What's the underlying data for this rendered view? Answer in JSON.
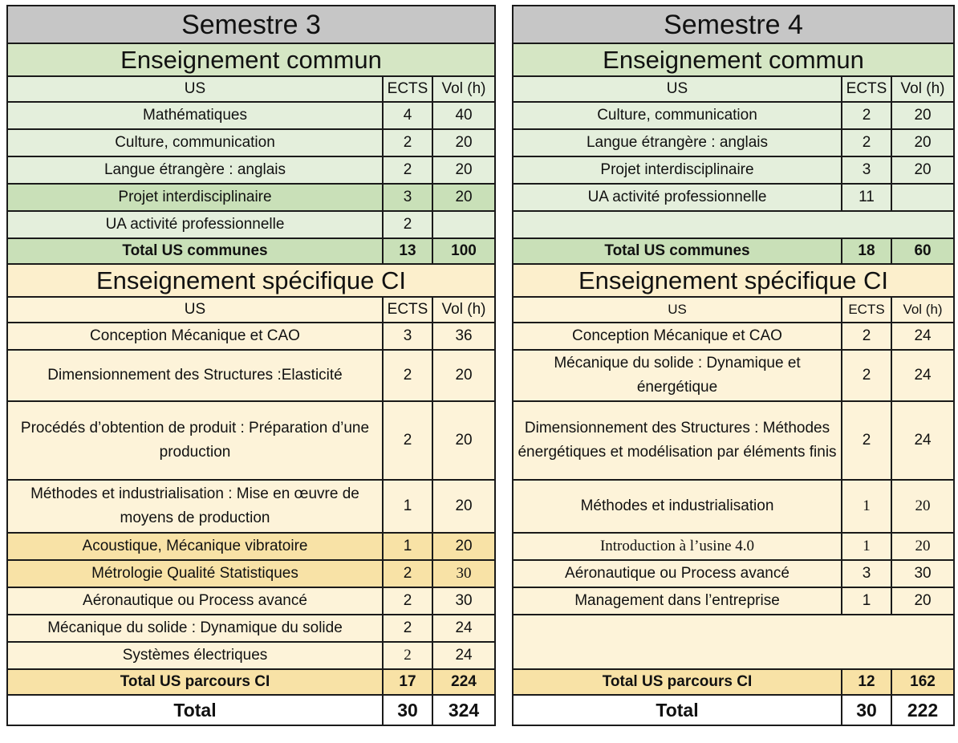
{
  "semester3": {
    "title": "Semestre 3",
    "common_title": "Enseignement commun",
    "col_us": "US",
    "col_ects": "ECTS",
    "col_vol": "Vol (h)",
    "common_rows": [
      {
        "us": "Mathématiques",
        "ects": "4",
        "vol": "40"
      },
      {
        "us": "Culture, communication",
        "ects": "2",
        "vol": "20"
      },
      {
        "us": "Langue étrangère : anglais",
        "ects": "2",
        "vol": "20"
      },
      {
        "us": "Projet interdisciplinaire",
        "ects": "3",
        "vol": "20"
      },
      {
        "us": "UA activité professionnelle",
        "ects": "2",
        "vol": ""
      }
    ],
    "common_total": {
      "label": "Total US communes",
      "ects": "13",
      "vol": "100"
    },
    "spec_title": "Enseignement spécifique CI",
    "spec_rows": [
      {
        "us": "Conception Mécanique et CAO",
        "ects": "3",
        "vol": "36"
      },
      {
        "us": "Dimensionnement des Structures :Elasticité",
        "ects": "2",
        "vol": "20"
      },
      {
        "us": "Procédés d’obtention de produit : Préparation d’une production",
        "ects": "2",
        "vol": "20"
      },
      {
        "us": "Méthodes et industrialisation : Mise en œuvre de moyens de production",
        "ects": "1",
        "vol": "20"
      },
      {
        "us": "Acoustique, Mécanique vibratoire",
        "ects": "1",
        "vol": "20"
      },
      {
        "us": "Métrologie Qualité Statistiques",
        "ects": "2",
        "vol": "30"
      },
      {
        "us": "Aéronautique ou Process avancé",
        "ects": "2",
        "vol": "30"
      },
      {
        "us": "Mécanique du solide : Dynamique du solide",
        "ects": "2",
        "vol": "24"
      },
      {
        "us": "Systèmes électriques",
        "ects": "2",
        "vol": "24"
      }
    ],
    "spec_total": {
      "label": "Total US parcours CI",
      "ects": "17",
      "vol": "224"
    },
    "grand_total": {
      "label": "Total",
      "ects": "30",
      "vol": "324"
    }
  },
  "semester4": {
    "title": "Semestre 4",
    "common_title": "Enseignement commun",
    "col_us": "US",
    "col_ects": "ECTS",
    "col_vol": "Vol (h)",
    "common_rows": [
      {
        "us": "Culture, communication",
        "ects": "2",
        "vol": "20"
      },
      {
        "us": "Langue étrangère : anglais",
        "ects": "2",
        "vol": "20"
      },
      {
        "us": "Projet interdisciplinaire",
        "ects": "3",
        "vol": "20"
      },
      {
        "us": "UA activité professionnelle",
        "ects": "11",
        "vol": ""
      }
    ],
    "common_total": {
      "label": "Total US communes",
      "ects": "18",
      "vol": "60"
    },
    "spec_title": "Enseignement spécifique CI",
    "spec_rows": [
      {
        "us": "Conception Mécanique et CAO",
        "ects": "2",
        "vol": "24"
      },
      {
        "us": "Mécanique du solide : Dynamique et énergétique",
        "ects": "2",
        "vol": "24"
      },
      {
        "us": "Dimensionnement des Structures : Méthodes énergétiques et modélisation par éléments finis",
        "ects": "2",
        "vol": "24"
      },
      {
        "us": "Méthodes et industrialisation",
        "ects": "1",
        "vol": "20"
      },
      {
        "us": "Introduction à l’usine 4.0",
        "ects": "1",
        "vol": "20"
      },
      {
        "us": "Aéronautique ou Process avancé",
        "ects": "3",
        "vol": "30"
      },
      {
        "us": "Management dans l’entreprise",
        "ects": "1",
        "vol": "20"
      }
    ],
    "spec_total": {
      "label": "Total US parcours CI",
      "ects": "12",
      "vol": "162"
    },
    "grand_total": {
      "label": "Total",
      "ects": "30",
      "vol": "222"
    }
  }
}
